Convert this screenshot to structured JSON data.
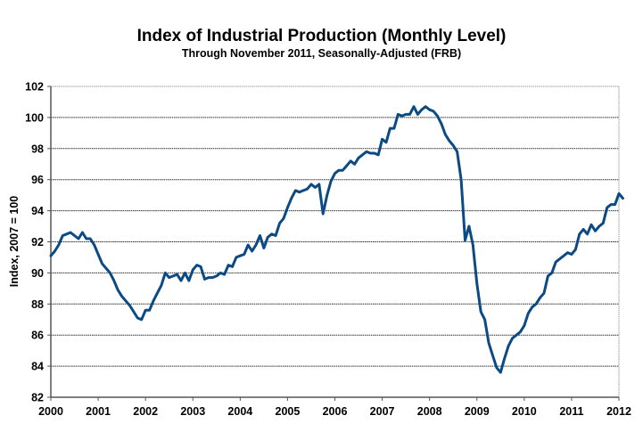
{
  "chart_data": {
    "type": "line",
    "title": "Index of Industrial Production (Monthly Level)",
    "subtitle": "Through November 2011, Seasonally-Adjusted (FRB)",
    "xlabel": "",
    "ylabel": "Index, 2007 = 100",
    "xlim": [
      2000,
      2012
    ],
    "ylim": [
      82,
      102
    ],
    "x_ticks": [
      "2000",
      "2001",
      "2002",
      "2003",
      "2004",
      "2005",
      "2006",
      "2007",
      "2008",
      "2009",
      "2010",
      "2011",
      "2012"
    ],
    "y_ticks": [
      "82",
      "84",
      "86",
      "88",
      "90",
      "92",
      "94",
      "96",
      "98",
      "100",
      "102"
    ],
    "grid": "horizontal",
    "legend": "none",
    "line_color": "#0b4a82",
    "series": [
      {
        "name": "Industrial Production Index",
        "start": "2000-01",
        "frequency": "monthly",
        "values": [
          91.1,
          91.4,
          91.8,
          92.4,
          92.5,
          92.6,
          92.4,
          92.2,
          92.6,
          92.2,
          92.2,
          91.8,
          91.2,
          90.6,
          90.3,
          90.0,
          89.5,
          88.9,
          88.5,
          88.2,
          87.9,
          87.5,
          87.1,
          87.0,
          87.6,
          87.6,
          88.2,
          88.7,
          89.2,
          90.0,
          89.7,
          89.8,
          89.9,
          89.5,
          90.0,
          89.5,
          90.2,
          90.5,
          90.4,
          89.6,
          89.7,
          89.7,
          89.8,
          90.0,
          89.9,
          90.5,
          90.4,
          91.0,
          91.1,
          91.2,
          91.8,
          91.4,
          91.8,
          92.4,
          91.6,
          92.3,
          92.5,
          92.4,
          93.2,
          93.5,
          94.2,
          94.8,
          95.3,
          95.2,
          95.3,
          95.4,
          95.7,
          95.5,
          95.7,
          93.8,
          95.0,
          95.9,
          96.4,
          96.6,
          96.6,
          96.9,
          97.2,
          97.0,
          97.4,
          97.6,
          97.8,
          97.7,
          97.7,
          97.6,
          98.6,
          98.4,
          99.3,
          99.3,
          100.2,
          100.1,
          100.2,
          100.2,
          100.7,
          100.2,
          100.5,
          100.7,
          100.5,
          100.4,
          100.1,
          99.6,
          98.9,
          98.5,
          98.2,
          97.8,
          96.0,
          92.1,
          93.0,
          91.8,
          89.3,
          87.5,
          87.0,
          85.5,
          84.7,
          83.9,
          83.6,
          84.5,
          85.3,
          85.8,
          86.0,
          86.2,
          86.6,
          87.4,
          87.8,
          88.0,
          88.4,
          88.7,
          89.8,
          90.0,
          90.7,
          90.9,
          91.1,
          91.3,
          91.2,
          91.5,
          92.5,
          92.8,
          92.5,
          93.1,
          92.7,
          93.0,
          93.2,
          94.2,
          94.4,
          94.4,
          95.1,
          94.8
        ]
      }
    ]
  }
}
